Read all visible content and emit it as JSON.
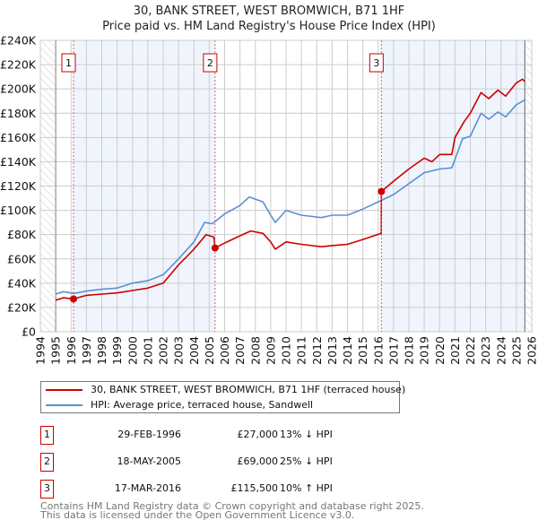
{
  "chart_data": {
    "type": "line",
    "title": "30, BANK STREET, WEST BROMWICH, B71 1HF",
    "subtitle": "Price paid vs. HM Land Registry's House Price Index (HPI)",
    "xlim": [
      1994,
      2026
    ],
    "ylim": [
      0,
      240000
    ],
    "grid": true,
    "y_ticks": [
      {
        "v": 0,
        "label": "£0"
      },
      {
        "v": 20000,
        "label": "£20K"
      },
      {
        "v": 40000,
        "label": "£40K"
      },
      {
        "v": 60000,
        "label": "£60K"
      },
      {
        "v": 80000,
        "label": "£80K"
      },
      {
        "v": 100000,
        "label": "£100K"
      },
      {
        "v": 120000,
        "label": "£120K"
      },
      {
        "v": 140000,
        "label": "£140K"
      },
      {
        "v": 160000,
        "label": "£160K"
      },
      {
        "v": 180000,
        "label": "£180K"
      },
      {
        "v": 200000,
        "label": "£200K"
      },
      {
        "v": 220000,
        "label": "£220K"
      },
      {
        "v": 240000,
        "label": "£240K"
      }
    ],
    "x_ticks": [
      "1994",
      "1995",
      "1996",
      "1997",
      "1998",
      "1999",
      "2000",
      "2001",
      "2002",
      "2003",
      "2004",
      "2005",
      "2006",
      "2007",
      "2008",
      "2009",
      "2010",
      "2011",
      "2012",
      "2013",
      "2014",
      "2015",
      "2016",
      "2017",
      "2018",
      "2019",
      "2020",
      "2021",
      "2022",
      "2023",
      "2024",
      "2025",
      "2026"
    ],
    "data_end": 2025.55,
    "series": [
      {
        "name": "30, BANK STREET, WEST BROMWICH, B71 1HF (terraced house)",
        "color": "#cc0000",
        "x": [
          1995.0,
          1995.5,
          1996.16,
          1997,
          1998,
          1999,
          2000,
          2001,
          2002,
          2003,
          2004,
          2004.8,
          2005.3,
          2005.38,
          2006,
          2007,
          2007.7,
          2008.5,
          2009.0,
          2009.3,
          2010,
          2011,
          2012.3,
          2013,
          2014,
          2015,
          2016.2,
          2016.21,
          2017,
          2018,
          2019,
          2019.5,
          2020,
          2020.8,
          2021,
          2021.6,
          2022,
          2022.7,
          2023.2,
          2023.8,
          2024.3,
          2025,
          2025.4,
          2025.55
        ],
        "y": [
          26000,
          28000,
          27000,
          30000,
          31000,
          32000,
          34000,
          36000,
          40000,
          55000,
          68000,
          80000,
          78000,
          69000,
          73000,
          79000,
          83000,
          81000,
          74000,
          68000,
          74000,
          72000,
          70000,
          71000,
          72000,
          76000,
          81000,
          115500,
          124000,
          134000,
          143000,
          140000,
          146000,
          146000,
          160000,
          173000,
          180000,
          197000,
          192000,
          199000,
          194000,
          205000,
          208000,
          206000
        ]
      },
      {
        "name": "HPI: Average price, terraced house, Sandwell",
        "color": "#5b8fd4",
        "x": [
          1995.0,
          1995.5,
          1996.2,
          1997,
          1998,
          1999,
          2000,
          2001,
          2002,
          2003,
          2004,
          2004.7,
          2005.2,
          2006,
          2007,
          2007.6,
          2008.5,
          2009.0,
          2009.3,
          2010,
          2011,
          2012.3,
          2013,
          2014,
          2015,
          2016,
          2017,
          2018,
          2019,
          2020,
          2020.8,
          2021.5,
          2022,
          2022.7,
          2023.2,
          2023.8,
          2024.3,
          2025,
          2025.55
        ],
        "y": [
          31000,
          33000,
          31500,
          33500,
          35000,
          36000,
          40000,
          42000,
          47000,
          60000,
          74000,
          90000,
          89000,
          97000,
          104000,
          111000,
          107000,
          96000,
          90000,
          100000,
          96000,
          94000,
          96000,
          96000,
          101000,
          107000,
          113000,
          122000,
          131000,
          134000,
          135000,
          159000,
          161000,
          180000,
          175000,
          181000,
          177000,
          187000,
          191000
        ]
      }
    ],
    "sales": [
      {
        "label": "1",
        "x": 1996.16,
        "y": 27000
      },
      {
        "label": "2",
        "x": 2005.38,
        "y": 69000
      },
      {
        "label": "3",
        "x": 2016.21,
        "y": 115500
      }
    ],
    "legend_placement": "below"
  },
  "table": [
    {
      "num": "1",
      "date": "29-FEB-1996",
      "price": "£27,000",
      "hpi": "13% ↓ HPI"
    },
    {
      "num": "2",
      "date": "18-MAY-2005",
      "price": "£69,000",
      "hpi": "25% ↓ HPI"
    },
    {
      "num": "3",
      "date": "17-MAR-2016",
      "price": "£115,500",
      "hpi": "10% ↑ HPI"
    }
  ],
  "footer": {
    "line1": "Contains HM Land Registry data © Crown copyright and database right 2025.",
    "line2": "This data is licensed under the Open Government Licence v3.0."
  }
}
